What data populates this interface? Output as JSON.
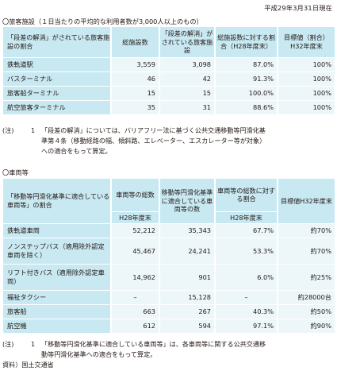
{
  "date": "平成29年3月31日現在",
  "section1": {
    "title": "〇旅客施設（１日当たりの平均的な利用者数が3,000人以上のもの）",
    "headers": [
      "「段差の解消」がされている旅客施設の割合",
      "総施設数",
      "「段差の解消」がされている旅客施設",
      "総施設数に対する割合（H28年度末）",
      "目標値（割合）H32年度末"
    ],
    "rows": [
      [
        "鉄軌道駅",
        "3,559",
        "3,098",
        "87.0%",
        "100%"
      ],
      [
        "バスターミナル",
        "46",
        "42",
        "91.3%",
        "100%"
      ],
      [
        "旅客船ターミナル",
        "15",
        "15",
        "100.0%",
        "100%"
      ],
      [
        "航空旅客ターミナル",
        "35",
        "31",
        "88.6%",
        "100%"
      ]
    ],
    "note_mark": "(注)",
    "note_num": "1",
    "note_lines": [
      "「段差の解消」については、バリアフリー法に基づく公共交通移動等円滑化基",
      "準第４条（移動経路の幅、傾斜路、エレベーター、エスカレーター等が対象）",
      "への適合をもって算定。"
    ]
  },
  "section2": {
    "title": "〇車両等",
    "headers": [
      "「移動等円滑化基準に適合している車両等」の割合",
      "車両等の総数",
      "移動等円滑化基準に適合している車両等の数",
      "車両等の総数に対する割合",
      "目標値H32年度末"
    ],
    "subheaders": [
      "H28年度末",
      "H28年度末",
      "H28年度末"
    ],
    "rows": [
      [
        "鉄軌道車両",
        "52,212",
        "35,343",
        "67.7%",
        "約70%"
      ],
      [
        "ノンステップバス（適用除外認定車両を除く）",
        "45,467",
        "24,241",
        "53.3%",
        "約70%"
      ],
      [
        "リフト付きバス（適用除外認定車両）",
        "14,962",
        "901",
        "6.0%",
        "約25%"
      ],
      [
        "福祉タクシー",
        "–",
        "15,128",
        "–",
        "約28000台"
      ],
      [
        "旅客船",
        "663",
        "267",
        "40.3%",
        "約50%"
      ],
      [
        "航空機",
        "612",
        "594",
        "97.1%",
        "約90%"
      ]
    ],
    "note_mark": "(注)",
    "note_num": "1",
    "note_lines": [
      "「移動等円滑化基準に適合している車両等」は、各車両等に関する公共交通移",
      "動等円滑化基準への適合をもって算定。"
    ]
  },
  "source": "資料）国土交通省"
}
